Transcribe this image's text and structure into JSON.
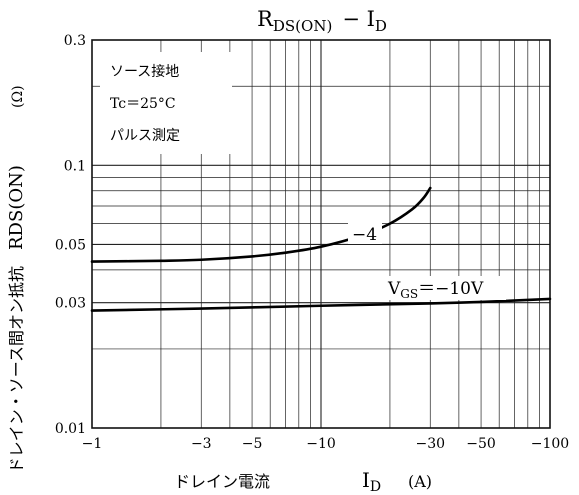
{
  "chart_data": {
    "type": "line",
    "title": "RDS(ON) − ID",
    "title_main": "R",
    "title_sub": "DS(ON)",
    "title_rest": "−  I",
    "title_sub2": "D",
    "xlabel": "ドレイン電流",
    "xlabel_sym": "I",
    "xlabel_sub": "D",
    "xlabel_unit": "(A)",
    "ylabel": "ドレイン・ソース間オン抵抗",
    "ylabel_sym": "RDS(ON)",
    "ylabel_unit": "(Ω)",
    "x_scale": "log",
    "y_scale": "log",
    "xlim": [
      1,
      100
    ],
    "ylim": [
      0.01,
      0.3
    ],
    "x_ticks": [
      {
        "value": 1,
        "label": "−1"
      },
      {
        "value": 3,
        "label": "−3"
      },
      {
        "value": 5,
        "label": "−5"
      },
      {
        "value": 10,
        "label": "−10"
      },
      {
        "value": 30,
        "label": "−30"
      },
      {
        "value": 50,
        "label": "−50"
      },
      {
        "value": 100,
        "label": "−100"
      }
    ],
    "y_ticks": [
      {
        "value": 0.01,
        "label": "0.01"
      },
      {
        "value": 0.03,
        "label": "0.03"
      },
      {
        "value": 0.05,
        "label": "0.05"
      },
      {
        "value": 0.1,
        "label": "0.1"
      },
      {
        "value": 0.3,
        "label": "0.3"
      }
    ],
    "conditions": [
      "ソース接地",
      "Tc＝25°C",
      "パルス測定"
    ],
    "grid": true,
    "series": [
      {
        "name": "−4",
        "x": [
          1,
          2,
          3,
          5,
          7,
          10,
          15,
          20,
          25,
          28,
          30
        ],
        "y": [
          0.043,
          0.0433,
          0.0437,
          0.045,
          0.0465,
          0.049,
          0.054,
          0.06,
          0.068,
          0.075,
          0.082
        ]
      },
      {
        "name": "VGS＝−10V",
        "name_main": "V",
        "name_sub": "GS",
        "name_rest": "＝−10V",
        "x": [
          1,
          3,
          10,
          30,
          50,
          100
        ],
        "y": [
          0.028,
          0.0285,
          0.0292,
          0.0298,
          0.0302,
          0.031
        ]
      }
    ]
  }
}
